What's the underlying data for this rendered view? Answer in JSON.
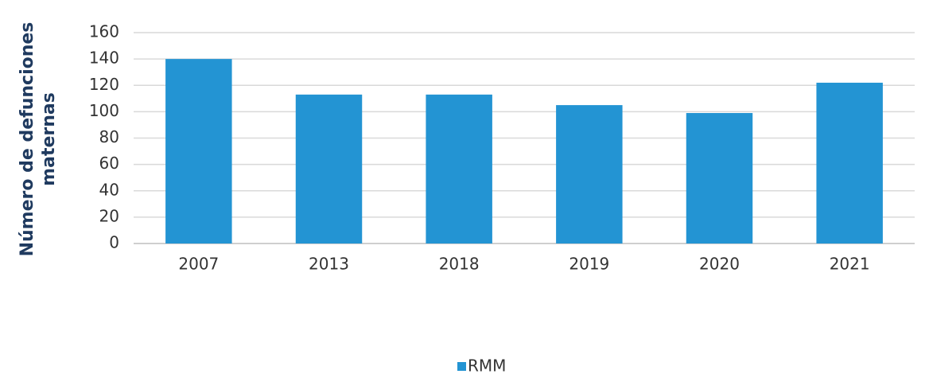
{
  "chart_data": {
    "type": "bar",
    "y_label": [
      "Número de defunciones",
      "maternas"
    ],
    "categories": [
      "2007",
      "2013",
      "2018",
      "2019",
      "2020",
      "2021"
    ],
    "series": [
      {
        "name": "RMM",
        "color": "#2394d3",
        "values": [
          140,
          113,
          113,
          105,
          99,
          122
        ]
      }
    ],
    "ylim": [
      0,
      160
    ],
    "yticks": [
      0,
      20,
      40,
      60,
      80,
      100,
      120,
      140,
      160
    ],
    "grid": true,
    "legend": "bottom"
  }
}
